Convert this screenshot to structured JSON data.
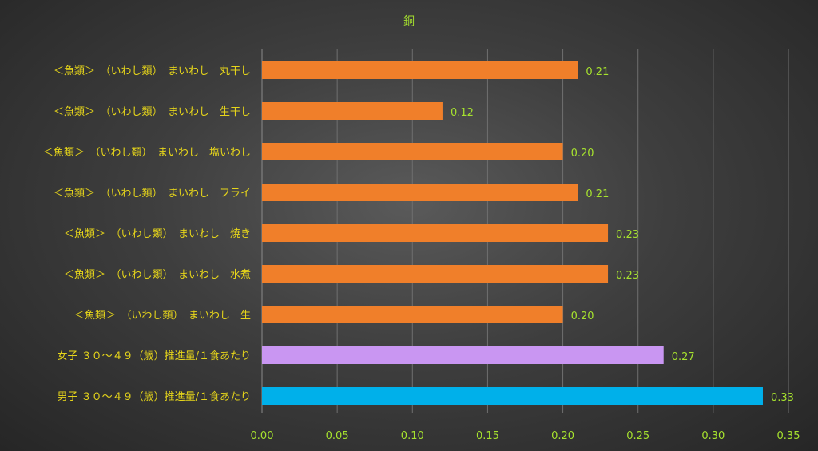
{
  "chart_data": {
    "type": "bar",
    "orientation": "horizontal",
    "title": "銅",
    "xlabel": "",
    "ylabel": "",
    "xlim": [
      0,
      0.35
    ],
    "x_ticks": [
      "0.00",
      "0.05",
      "0.10",
      "0.15",
      "0.20",
      "0.25",
      "0.30",
      "0.35"
    ],
    "grid": true,
    "legend": "none",
    "categories": [
      "＜魚類＞　（いわし類）　まいわし　丸干し",
      "＜魚類＞　（いわし類）　まいわし　生干し",
      "＜魚類＞　（いわし類）　まいわし　塩いわし",
      "＜魚類＞　（いわし類）　まいわし　フライ",
      "＜魚類＞　（いわし類）　まいわし　焼き",
      "＜魚類＞　（いわし類）　まいわし　水煮",
      "＜魚類＞　（いわし類）　まいわし　生",
      "女子 ３０～４９（歳）推進量/１食あたり",
      "男子 ３０～４９（歳）推進量/１食あたり"
    ],
    "values": [
      0.21,
      0.12,
      0.2,
      0.21,
      0.23,
      0.23,
      0.2,
      0.267,
      0.333
    ],
    "value_labels": [
      "0.21",
      "0.12",
      "0.20",
      "0.21",
      "0.23",
      "0.23",
      "0.20",
      "0.27",
      "0.33"
    ],
    "bar_colors": [
      "#f07f2a",
      "#f07f2a",
      "#f07f2a",
      "#f07f2a",
      "#f07f2a",
      "#f07f2a",
      "#f07f2a",
      "#c996f2",
      "#00b0ea"
    ]
  },
  "colors": {
    "title": "#a6e22e",
    "category_label": "#e6d51a",
    "tick_label": "#a6e22e",
    "data_label": "#a6e22e"
  }
}
